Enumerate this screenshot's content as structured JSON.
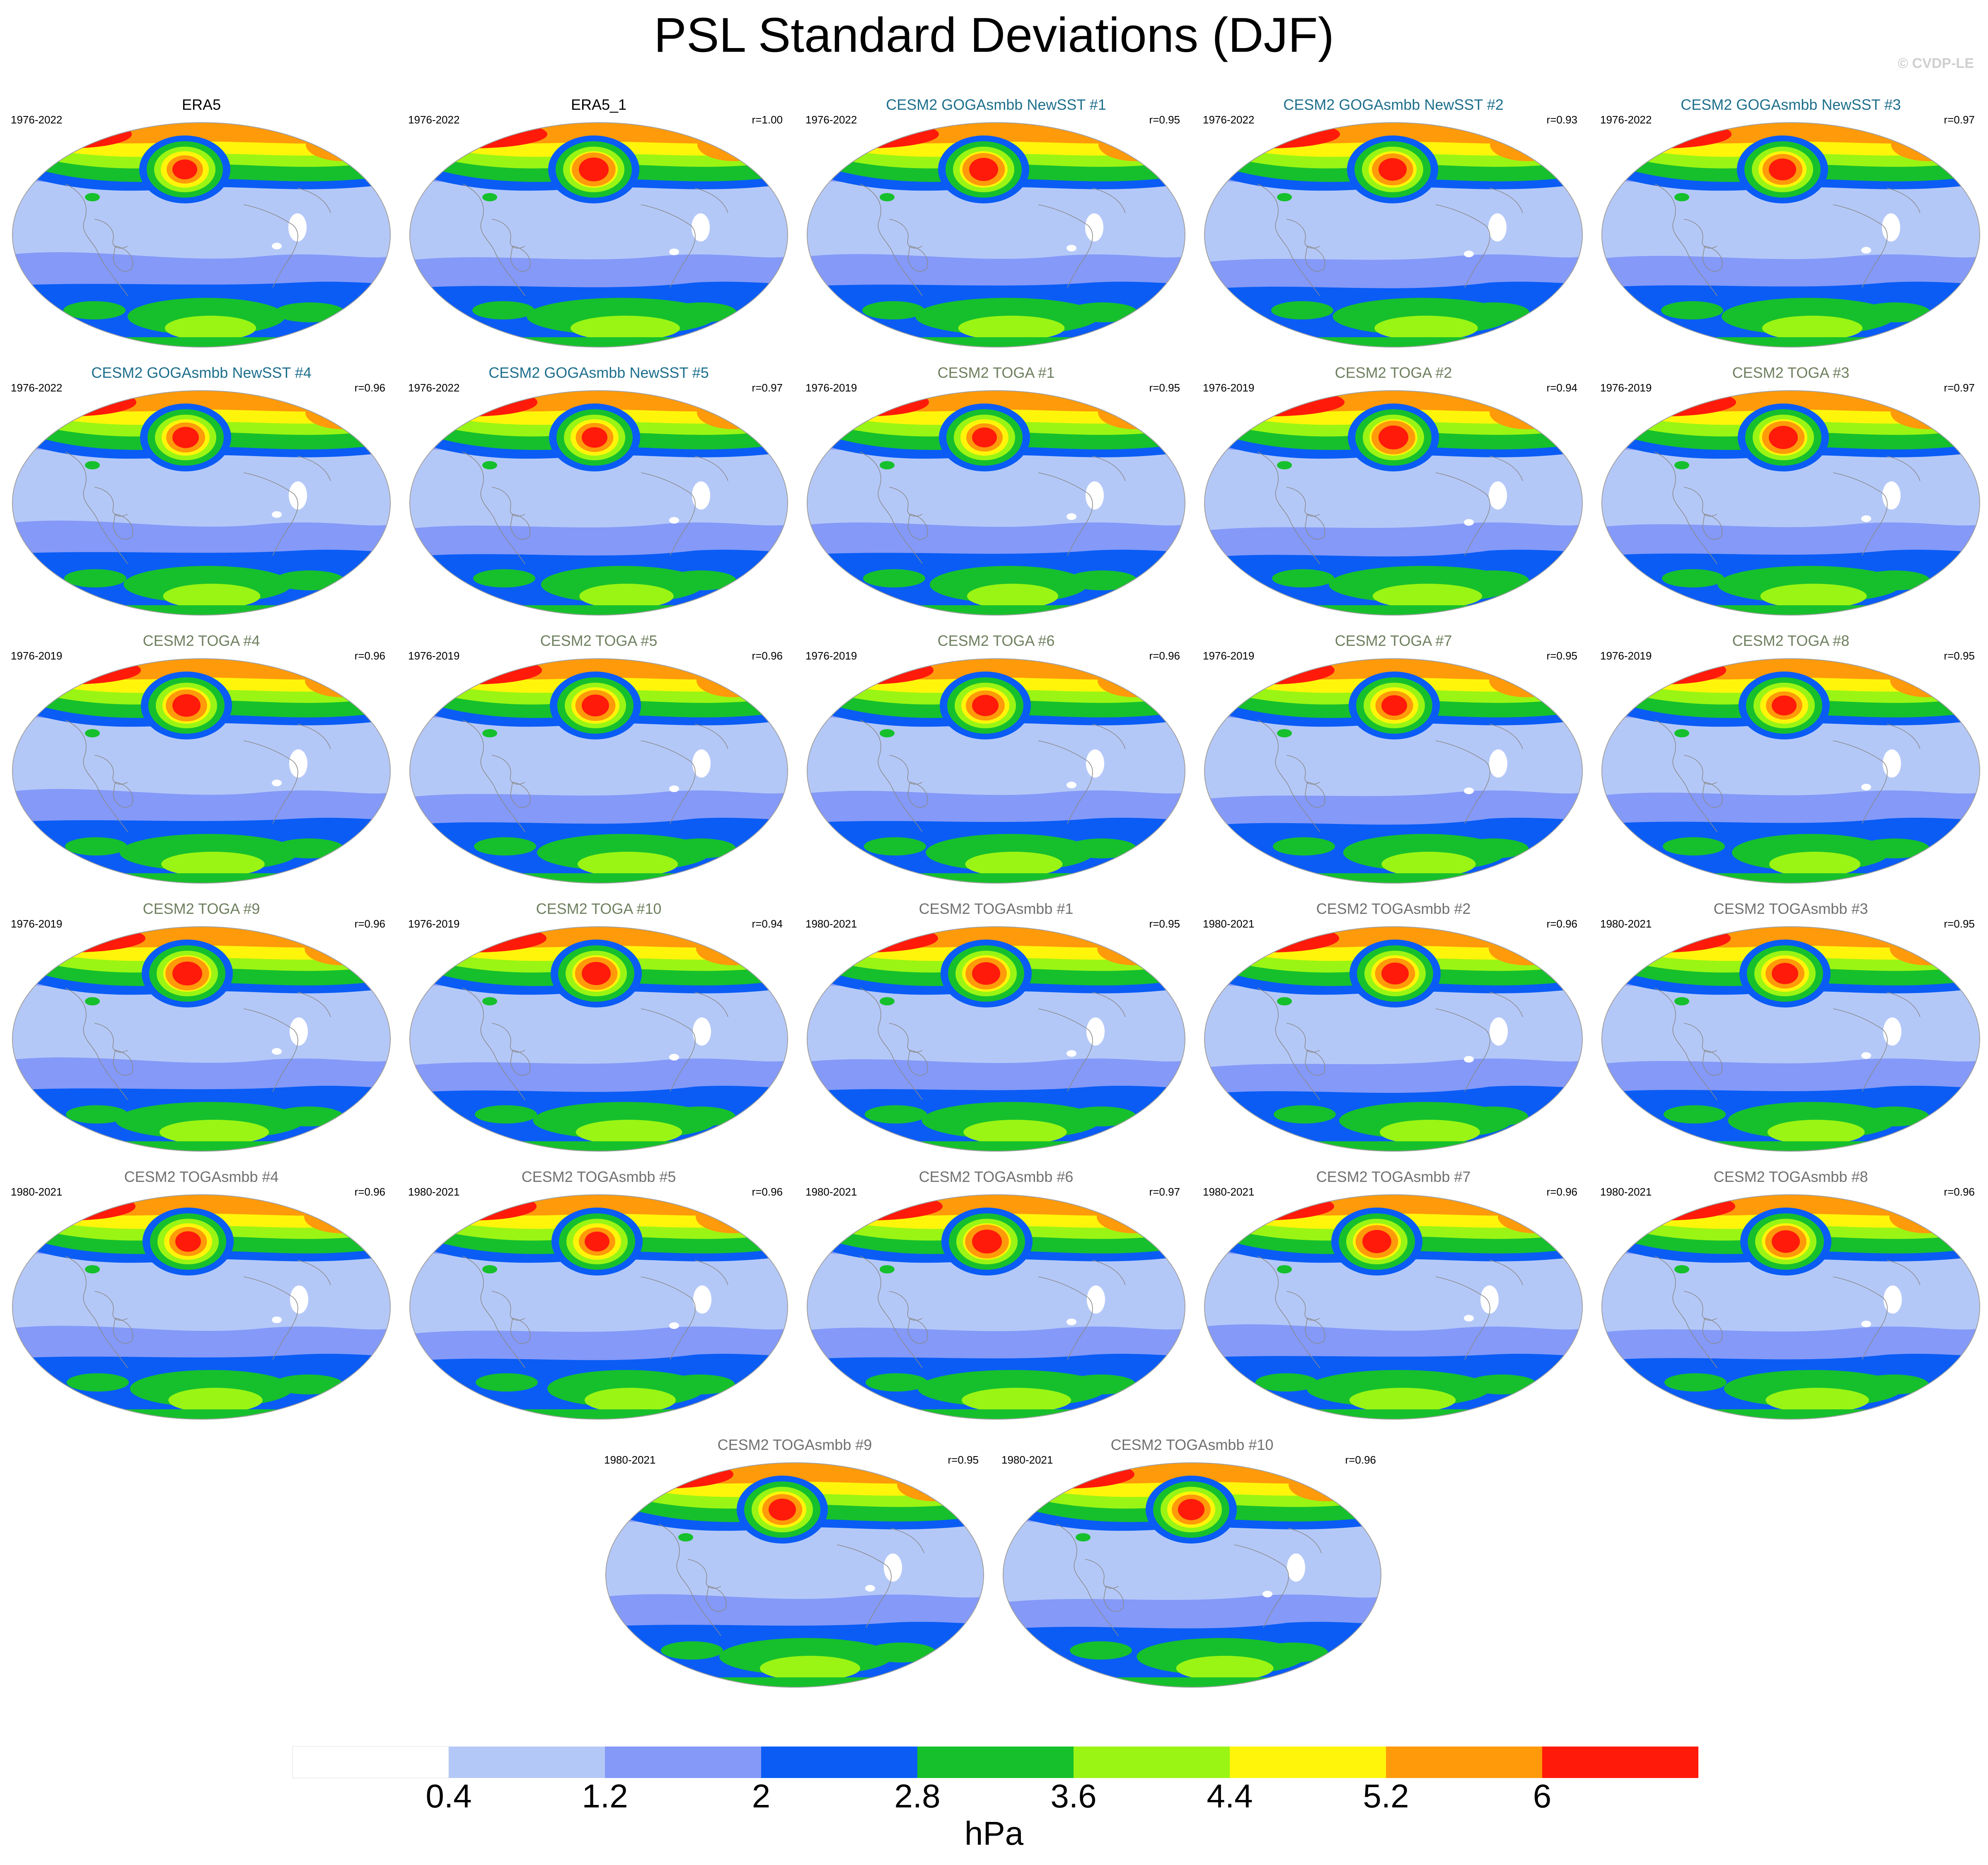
{
  "title": "PSL Standard Deviations (DJF)",
  "watermark": "© CVDP-LE",
  "colors": {
    "panel_title_obs": "#000000",
    "panel_title_goga": "#1d6f8c",
    "panel_title_toga": "#6e7f5e",
    "panel_title_togasmbb": "#707070"
  },
  "panels": [
    {
      "title": "ERA5",
      "period": "1976-2022",
      "corr": "",
      "group": "obs"
    },
    {
      "title": "ERA5_1",
      "period": "1976-2022",
      "corr": "r=1.00",
      "group": "obs"
    },
    {
      "title": "CESM2 GOGAsmbb NewSST #1",
      "period": "1976-2022",
      "corr": "r=0.95",
      "group": "goga"
    },
    {
      "title": "CESM2 GOGAsmbb NewSST #2",
      "period": "1976-2022",
      "corr": "r=0.93",
      "group": "goga"
    },
    {
      "title": "CESM2 GOGAsmbb NewSST #3",
      "period": "1976-2022",
      "corr": "r=0.97",
      "group": "goga"
    },
    {
      "title": "CESM2 GOGAsmbb NewSST #4",
      "period": "1976-2022",
      "corr": "r=0.96",
      "group": "goga"
    },
    {
      "title": "CESM2 GOGAsmbb NewSST #5",
      "period": "1976-2022",
      "corr": "r=0.97",
      "group": "goga"
    },
    {
      "title": "CESM2 TOGA #1",
      "period": "1976-2019",
      "corr": "r=0.95",
      "group": "toga"
    },
    {
      "title": "CESM2 TOGA #2",
      "period": "1976-2019",
      "corr": "r=0.94",
      "group": "toga"
    },
    {
      "title": "CESM2 TOGA #3",
      "period": "1976-2019",
      "corr": "r=0.97",
      "group": "toga"
    },
    {
      "title": "CESM2 TOGA #4",
      "period": "1976-2019",
      "corr": "r=0.96",
      "group": "toga"
    },
    {
      "title": "CESM2 TOGA #5",
      "period": "1976-2019",
      "corr": "r=0.96",
      "group": "toga"
    },
    {
      "title": "CESM2 TOGA #6",
      "period": "1976-2019",
      "corr": "r=0.96",
      "group": "toga"
    },
    {
      "title": "CESM2 TOGA #7",
      "period": "1976-2019",
      "corr": "r=0.95",
      "group": "toga"
    },
    {
      "title": "CESM2 TOGA #8",
      "period": "1976-2019",
      "corr": "r=0.95",
      "group": "toga"
    },
    {
      "title": "CESM2 TOGA #9",
      "period": "1976-2019",
      "corr": "r=0.96",
      "group": "toga"
    },
    {
      "title": "CESM2 TOGA #10",
      "period": "1976-2019",
      "corr": "r=0.94",
      "group": "toga"
    },
    {
      "title": "CESM2 TOGAsmbb #1",
      "period": "1980-2021",
      "corr": "r=0.95",
      "group": "togasmbb"
    },
    {
      "title": "CESM2 TOGAsmbb #2",
      "period": "1980-2021",
      "corr": "r=0.96",
      "group": "togasmbb"
    },
    {
      "title": "CESM2 TOGAsmbb #3",
      "period": "1980-2021",
      "corr": "r=0.95",
      "group": "togasmbb"
    },
    {
      "title": "CESM2 TOGAsmbb #4",
      "period": "1980-2021",
      "corr": "r=0.96",
      "group": "togasmbb"
    },
    {
      "title": "CESM2 TOGAsmbb #5",
      "period": "1980-2021",
      "corr": "r=0.96",
      "group": "togasmbb"
    },
    {
      "title": "CESM2 TOGAsmbb #6",
      "period": "1980-2021",
      "corr": "r=0.97",
      "group": "togasmbb"
    },
    {
      "title": "CESM2 TOGAsmbb #7",
      "period": "1980-2021",
      "corr": "r=0.96",
      "group": "togasmbb"
    },
    {
      "title": "CESM2 TOGAsmbb #8",
      "period": "1980-2021",
      "corr": "r=0.96",
      "group": "togasmbb"
    },
    {
      "title": "CESM2 TOGAsmbb #9",
      "period": "1980-2021",
      "corr": "r=0.95",
      "group": "togasmbb"
    },
    {
      "title": "CESM2 TOGAsmbb #10",
      "period": "1980-2021",
      "corr": "r=0.96",
      "group": "togasmbb"
    }
  ],
  "chart_data": {
    "type": "heatmap",
    "title": "PSL Standard Deviations (DJF)",
    "units": "hPa",
    "levels": [
      "0.4",
      "1.2",
      "2",
      "2.8",
      "3.6",
      "4.4",
      "5.2",
      "6"
    ],
    "level_colors": [
      "#ffffff",
      "#b4c8f8",
      "#8499f8",
      "#0a5cf5",
      "#16c02c",
      "#9af514",
      "#fff50a",
      "#ff9a0a",
      "#ff1a0a"
    ],
    "series": [
      {
        "name": "ERA5",
        "period": "1976-2022",
        "r": null
      },
      {
        "name": "ERA5_1",
        "period": "1976-2022",
        "r": 1.0
      },
      {
        "name": "CESM2 GOGAsmbb NewSST #1",
        "period": "1976-2022",
        "r": 0.95
      },
      {
        "name": "CESM2 GOGAsmbb NewSST #2",
        "period": "1976-2022",
        "r": 0.93
      },
      {
        "name": "CESM2 GOGAsmbb NewSST #3",
        "period": "1976-2022",
        "r": 0.97
      },
      {
        "name": "CESM2 GOGAsmbb NewSST #4",
        "period": "1976-2022",
        "r": 0.96
      },
      {
        "name": "CESM2 GOGAsmbb NewSST #5",
        "period": "1976-2022",
        "r": 0.97
      },
      {
        "name": "CESM2 TOGA #1",
        "period": "1976-2019",
        "r": 0.95
      },
      {
        "name": "CESM2 TOGA #2",
        "period": "1976-2019",
        "r": 0.94
      },
      {
        "name": "CESM2 TOGA #3",
        "period": "1976-2019",
        "r": 0.97
      },
      {
        "name": "CESM2 TOGA #4",
        "period": "1976-2019",
        "r": 0.96
      },
      {
        "name": "CESM2 TOGA #5",
        "period": "1976-2019",
        "r": 0.96
      },
      {
        "name": "CESM2 TOGA #6",
        "period": "1976-2019",
        "r": 0.96
      },
      {
        "name": "CESM2 TOGA #7",
        "period": "1976-2019",
        "r": 0.95
      },
      {
        "name": "CESM2 TOGA #8",
        "period": "1976-2019",
        "r": 0.95
      },
      {
        "name": "CESM2 TOGA #9",
        "period": "1976-2019",
        "r": 0.96
      },
      {
        "name": "CESM2 TOGA #10",
        "period": "1976-2019",
        "r": 0.94
      },
      {
        "name": "CESM2 TOGAsmbb #1",
        "period": "1980-2021",
        "r": 0.95
      },
      {
        "name": "CESM2 TOGAsmbb #2",
        "period": "1980-2021",
        "r": 0.96
      },
      {
        "name": "CESM2 TOGAsmbb #3",
        "period": "1980-2021",
        "r": 0.95
      },
      {
        "name": "CESM2 TOGAsmbb #4",
        "period": "1980-2021",
        "r": 0.96
      },
      {
        "name": "CESM2 TOGAsmbb #5",
        "period": "1980-2021",
        "r": 0.96
      },
      {
        "name": "CESM2 TOGAsmbb #6",
        "period": "1980-2021",
        "r": 0.97
      },
      {
        "name": "CESM2 TOGAsmbb #7",
        "period": "1980-2021",
        "r": 0.96
      },
      {
        "name": "CESM2 TOGAsmbb #8",
        "period": "1980-2021",
        "r": 0.96
      },
      {
        "name": "CESM2 TOGAsmbb #9",
        "period": "1980-2021",
        "r": 0.95
      },
      {
        "name": "CESM2 TOGAsmbb #10",
        "period": "1980-2021",
        "r": 0.96
      }
    ]
  }
}
